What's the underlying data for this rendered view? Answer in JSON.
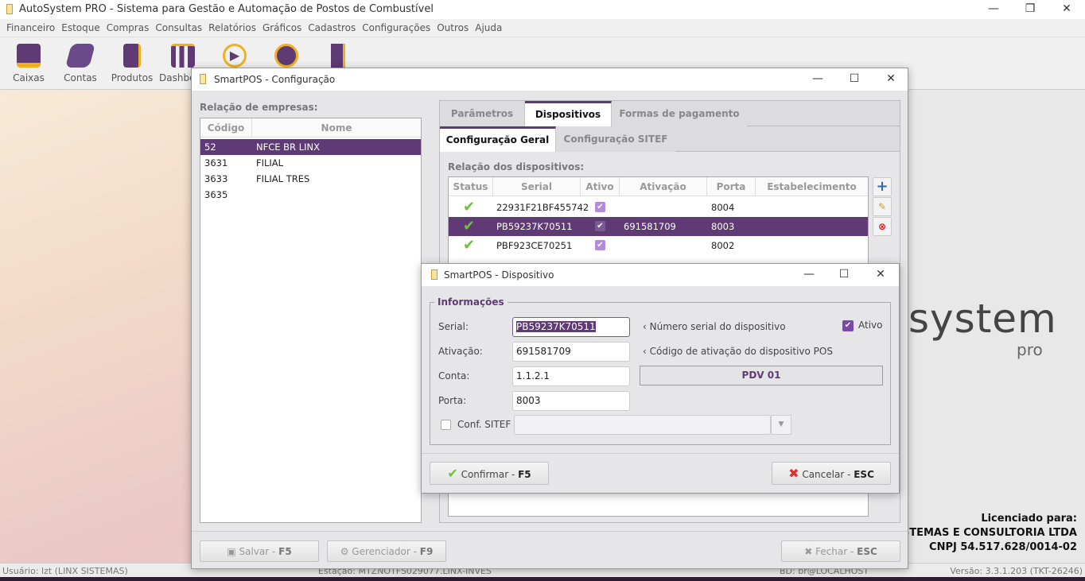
{
  "app": {
    "title": "AutoSystem PRO - Sistema para Gestão e Automação de Postos de Combustível"
  },
  "menu": [
    "Financeiro",
    "Estoque",
    "Compras",
    "Consultas",
    "Relatórios",
    "Gráficos",
    "Cadastros",
    "Configurações",
    "Outros",
    "Ajuda"
  ],
  "toolbar": [
    {
      "label": "Caixas",
      "icon": "cash-register-icon"
    },
    {
      "label": "Contas",
      "icon": "money-stack-icon"
    },
    {
      "label": "Produtos",
      "icon": "oil-can-icon"
    },
    {
      "label": "Dashboard",
      "icon": "bar-chart-icon"
    },
    {
      "label": "",
      "icon": "play-icon"
    },
    {
      "label": "",
      "icon": "lifebuoy-icon"
    },
    {
      "label": "",
      "icon": "exit-door-icon"
    }
  ],
  "background": {
    "logo": "system",
    "logo_sub": "pro",
    "license_title": "Licenciado para:",
    "license_company": "STEMAS E CONSULTORIA LTDA",
    "license_cnpj": "CNPJ 54.517.628/0014-02"
  },
  "status": {
    "user": "Usuário: lzt (LINX SISTEMAS)",
    "station": "Estação: MTZNOTFS029077.LINX-INVES",
    "db": "BD: br@LOCALHOST",
    "version": "Versão: 3.3.1.203 (TKT-26246)"
  },
  "config": {
    "title": "SmartPOS - Configuração",
    "companies_label": "Relação de empresas:",
    "companies_headers": [
      "Código",
      "Nome"
    ],
    "companies": [
      [
        "52",
        "NFCE BR LINX"
      ],
      [
        "3631",
        "FILIAL"
      ],
      [
        "3633",
        "FILIAL TRES"
      ],
      [
        "3635",
        ""
      ]
    ],
    "tabs": [
      "Parâmetros",
      "Dispositivos",
      "Formas de pagamento"
    ],
    "subtabs": [
      "Configuração Geral",
      "Configuração SITEF"
    ],
    "devices_label": "Relação dos dispositivos:",
    "devices_headers": [
      "Status",
      "Serial",
      "Ativo",
      "Ativação",
      "Porta",
      "Estabelecimento"
    ],
    "devices": [
      {
        "serial": "22931F21BF455742",
        "ativo": true,
        "ativacao": "",
        "porta": "8004",
        "estab": ""
      },
      {
        "serial": "PB59237K70511",
        "ativo": true,
        "ativacao": "691581709",
        "porta": "8003",
        "estab": ""
      },
      {
        "serial": "PBF923CE70251",
        "ativo": true,
        "ativacao": "",
        "porta": "8002",
        "estab": ""
      }
    ],
    "save": "Salvar - ",
    "save_key": "F5",
    "manager": "Gerenciador - ",
    "manager_key": "F9",
    "close": "Fechar - ",
    "close_key": "ESC"
  },
  "device": {
    "title": "SmartPOS - Dispositivo",
    "group": "Informações",
    "serial_label": "Serial:",
    "serial": "PB59237K70511",
    "serial_hint": "Número serial do dispositivo",
    "ativo_label": "Ativo",
    "ativo": true,
    "ativacao_label": "Ativação:",
    "ativacao": "691581709",
    "ativacao_hint": "Código de ativação do dispositivo POS",
    "conta_label": "Conta:",
    "conta": "1.1.2.1",
    "conta_name": "PDV 01",
    "porta_label": "Porta:",
    "porta": "8003",
    "sitef_label": "Conf. SITEF",
    "sitef": false,
    "sitef_value": "",
    "confirm": "Confirmar - ",
    "confirm_key": "F5",
    "cancel": "Cancelar - ",
    "cancel_key": "ESC"
  },
  "colors": {
    "accent": "#5f3a74",
    "check": "#6cc13a"
  }
}
